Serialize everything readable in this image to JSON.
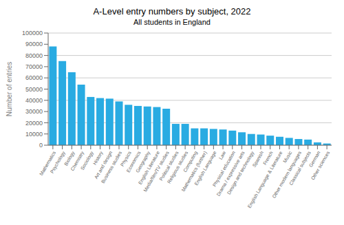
{
  "chart_data": {
    "type": "bar",
    "title": "A-Level entry numbers by subject, 2022",
    "subtitle": "All students in England",
    "ylabel": "Number of entries",
    "categories": [
      "Mathematics",
      "Psychology",
      "Biology",
      "Chemistry",
      "Sociology",
      "History",
      "Art and design",
      "Business studies",
      "Physics",
      "Economics",
      "Geography",
      "English Literature",
      "Media/film/TV studies",
      "Political studies",
      "Religious studies",
      "Computing",
      "Mathematics (further)",
      "English Language",
      "Law",
      "Physical education",
      "Drama / expressive arts",
      "Design and technology",
      "Spanish",
      "French",
      "English Language & Literature",
      "Music",
      "Other modern languages",
      "Classical subjects",
      "German",
      "Other sciences"
    ],
    "values": [
      88000,
      75000,
      65000,
      54000,
      43000,
      42000,
      41500,
      39000,
      36000,
      35000,
      34500,
      34000,
      32500,
      19000,
      19000,
      15000,
      15000,
      14500,
      14000,
      13000,
      11500,
      10000,
      9500,
      8500,
      7500,
      6500,
      5500,
      5000,
      2500,
      1500
    ],
    "color": "#29ABE2",
    "ylim": [
      0,
      100000
    ],
    "yticks": [
      0,
      10000,
      20000,
      30000,
      40000,
      50000,
      60000,
      70000,
      80000,
      90000,
      100000
    ],
    "grid": true
  }
}
